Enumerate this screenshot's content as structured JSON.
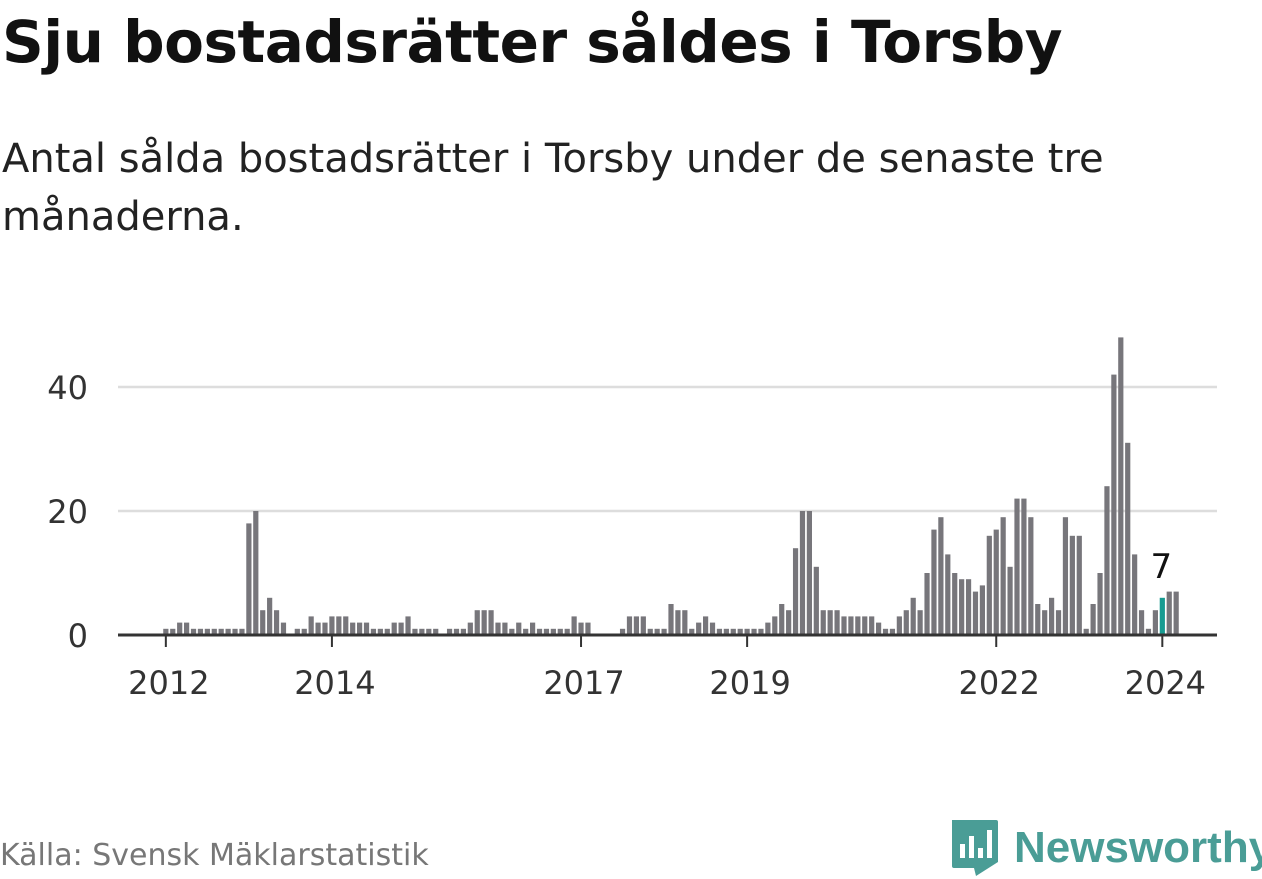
{
  "title": "Sju bostadsrätter såldes i Torsby",
  "subtitle": "Antal sålda bostadsrätter i Torsby under de senaste tre månaderna.",
  "source": "Källa: Svensk Mäklarstatistik",
  "brand": "Newsworthy",
  "icon": "newsworthy-logo-icon",
  "colors": {
    "bar": "#77767b",
    "highlight": "#179b91",
    "grid": "#dddddd",
    "axis": "#333333",
    "brand": "#4a9d96"
  },
  "chart_data": {
    "type": "bar",
    "title": "Sju bostadsrätter såldes i Torsby",
    "xlabel": "",
    "ylabel": "",
    "ylim": [
      0,
      48
    ],
    "y_ticks": [
      0,
      20,
      40
    ],
    "x_ticks": [
      "2012",
      "2014",
      "2017",
      "2019",
      "2022",
      "2024"
    ],
    "x_tick_months": [
      12,
      36,
      72,
      96,
      132,
      156
    ],
    "start_month": "2011-01",
    "end_month": "2024-01",
    "values": [
      0,
      0,
      0,
      0,
      0,
      0,
      0,
      0,
      0,
      0,
      0,
      0,
      1,
      1,
      2,
      2,
      1,
      1,
      1,
      1,
      1,
      1,
      1,
      1,
      18,
      20,
      4,
      6,
      4,
      2,
      0,
      1,
      1,
      3,
      2,
      2,
      3,
      3,
      3,
      2,
      2,
      2,
      1,
      1,
      1,
      2,
      2,
      3,
      1,
      1,
      1,
      1,
      0,
      1,
      1,
      1,
      2,
      4,
      4,
      4,
      2,
      2,
      1,
      2,
      1,
      2,
      1,
      1,
      1,
      1,
      1,
      3,
      2,
      2,
      0,
      0,
      0,
      0,
      1,
      3,
      3,
      3,
      1,
      1,
      1,
      5,
      4,
      4,
      1,
      2,
      3,
      2,
      1,
      1,
      1,
      1,
      1,
      1,
      1,
      2,
      3,
      5,
      4,
      14,
      20,
      20,
      11,
      4,
      4,
      4,
      3,
      3,
      3,
      3,
      3,
      2,
      1,
      1,
      3,
      4,
      6,
      4,
      10,
      17,
      19,
      13,
      10,
      9,
      9,
      7,
      8,
      16,
      17,
      19,
      11,
      22,
      22,
      19,
      5,
      4,
      6,
      4,
      19,
      16,
      16,
      1,
      5,
      10,
      24,
      42,
      48,
      31,
      13,
      4,
      1,
      4,
      6,
      7,
      7
    ],
    "highlight_index": 156,
    "annotation": "7"
  }
}
